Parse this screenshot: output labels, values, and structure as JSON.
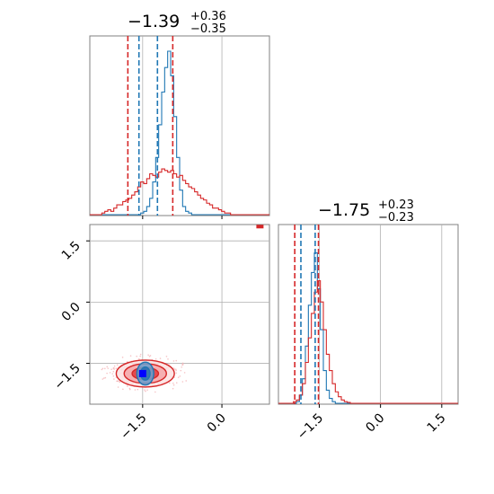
{
  "chart_data": [
    {
      "type": "histogram",
      "panel": "param-1-marginal",
      "title": {
        "value": "−1.39",
        "upper": "+0.36",
        "lower": "−0.35"
      },
      "xlim": [
        -2.5,
        0.9
      ],
      "xticks": [
        -1.5,
        0.0
      ],
      "series": [
        {
          "color": "#1f77b4",
          "values": [
            0,
            0,
            0,
            0,
            0,
            0,
            0,
            0,
            0,
            0,
            0,
            0,
            0,
            0,
            0,
            0,
            0,
            0.01,
            0.02,
            0.05,
            0.1,
            0.2,
            0.35,
            0.55,
            0.75,
            0.9,
            1.0,
            0.85,
            0.6,
            0.35,
            0.15,
            0.05,
            0.02,
            0.01,
            0,
            0,
            0,
            0,
            0,
            0,
            0,
            0,
            0,
            0,
            0,
            0,
            0,
            0,
            0,
            0,
            0,
            0,
            0,
            0,
            0,
            0,
            0,
            0,
            0,
            0
          ]
        },
        {
          "color": "#d62728",
          "values": [
            0,
            0,
            0,
            0,
            0.01,
            0.02,
            0.03,
            0.02,
            0.04,
            0.06,
            0.06,
            0.08,
            0.09,
            0.1,
            0.12,
            0.14,
            0.17,
            0.2,
            0.19,
            0.22,
            0.25,
            0.24,
            0.23,
            0.26,
            0.28,
            0.27,
            0.26,
            0.27,
            0.25,
            0.23,
            0.24,
            0.21,
            0.19,
            0.17,
            0.16,
            0.14,
            0.12,
            0.1,
            0.09,
            0.07,
            0.06,
            0.04,
            0.04,
            0.03,
            0.02,
            0.01,
            0.01,
            0,
            0,
            0,
            0,
            0,
            0,
            0,
            0,
            0,
            0,
            0,
            0,
            0
          ]
        }
      ],
      "quantile_lines": [
        {
          "color": "#d62728",
          "x": [
            -1.78,
            -0.93
          ]
        },
        {
          "color": "#1f77b4",
          "x": [
            -1.57,
            -1.22
          ]
        }
      ]
    },
    {
      "type": "histogram",
      "panel": "param-2-marginal",
      "title": {
        "value": "−1.75",
        "upper": "+0.23",
        "lower": "−0.23"
      },
      "xlim": [
        -2.5,
        1.9
      ],
      "xticks": [
        -1.5,
        0.0,
        1.5
      ],
      "series": [
        {
          "color": "#1f77b4",
          "values": [
            0,
            0,
            0,
            0,
            0,
            0,
            0.01,
            0.05,
            0.15,
            0.35,
            0.6,
            0.8,
            0.92,
            0.7,
            0.45,
            0.2,
            0.08,
            0.03,
            0.01,
            0,
            0,
            0,
            0,
            0,
            0,
            0,
            0,
            0,
            0,
            0,
            0,
            0,
            0,
            0,
            0,
            0,
            0,
            0,
            0,
            0,
            0,
            0,
            0,
            0,
            0,
            0,
            0,
            0,
            0,
            0,
            0,
            0,
            0,
            0,
            0,
            0,
            0,
            0,
            0,
            0
          ]
        },
        {
          "color": "#d62728",
          "values": [
            0,
            0,
            0,
            0,
            0,
            0.01,
            0.02,
            0.05,
            0.12,
            0.25,
            0.4,
            0.55,
            0.68,
            0.75,
            0.62,
            0.45,
            0.3,
            0.2,
            0.12,
            0.07,
            0.04,
            0.02,
            0.01,
            0.005,
            0,
            0,
            0,
            0,
            0,
            0,
            0,
            0,
            0,
            0,
            0,
            0,
            0,
            0,
            0,
            0,
            0,
            0,
            0,
            0,
            0,
            0,
            0,
            0,
            0,
            0,
            0,
            0,
            0,
            0,
            0,
            0,
            0,
            0,
            0,
            0
          ]
        }
      ],
      "quantile_lines": [
        {
          "color": "#d62728",
          "x": [
            -2.1,
            -1.52
          ]
        },
        {
          "color": "#1f77b4",
          "x": [
            -1.95,
            -1.6
          ]
        }
      ]
    },
    {
      "type": "contour",
      "panel": "joint",
      "xlim": [
        -2.5,
        0.9
      ],
      "ylim": [
        -2.5,
        1.9
      ],
      "xticks": [
        -1.5,
        0.0
      ],
      "yticks": [
        -1.5,
        0.0,
        1.5
      ],
      "grid": true,
      "series": [
        {
          "color": "#d62728",
          "center": [
            -1.45,
            -1.75
          ],
          "levels": [
            {
              "sx": 0.55,
              "sy": 0.33
            },
            {
              "sx": 0.4,
              "sy": 0.24
            },
            {
              "sx": 0.25,
              "sy": 0.15
            }
          ]
        },
        {
          "color": "#1f77b4",
          "center": [
            -1.45,
            -1.75
          ],
          "levels": [
            {
              "sx": 0.16,
              "sy": 0.28
            },
            {
              "sx": 0.09,
              "sy": 0.16
            }
          ]
        }
      ],
      "points": [
        {
          "color": "#d62728",
          "x": 0.72,
          "y": 1.85
        },
        {
          "color": "#0000ff",
          "x": -1.5,
          "y": -1.75
        }
      ]
    }
  ]
}
